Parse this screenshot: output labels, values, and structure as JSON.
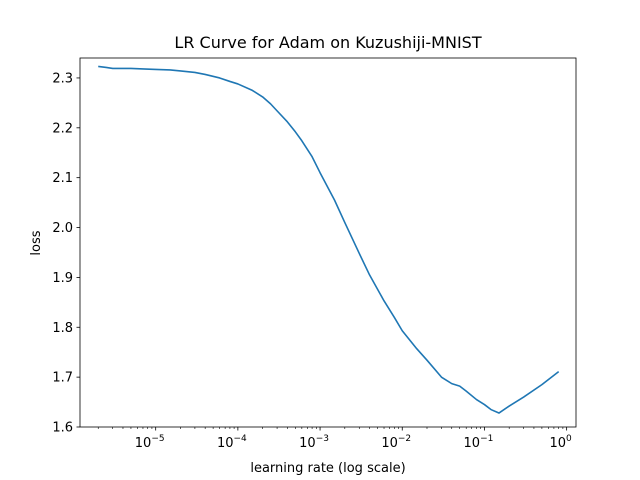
{
  "chart_data": {
    "type": "line",
    "title": "LR Curve for Adam on Kuzushiji-MNIST",
    "xlabel": "learning rate (log scale)",
    "ylabel": "loss",
    "xscale": "log",
    "xlim": [
      1.2e-06,
      1.3
    ],
    "ylim": [
      1.6,
      2.34
    ],
    "grid": false,
    "x_ticks": [
      {
        "value": 1e-05,
        "base": "10",
        "exp": "−5"
      },
      {
        "value": 0.0001,
        "base": "10",
        "exp": "−4"
      },
      {
        "value": 0.001,
        "base": "10",
        "exp": "−3"
      },
      {
        "value": 0.01,
        "base": "10",
        "exp": "−2"
      },
      {
        "value": 0.1,
        "base": "10",
        "exp": "−1"
      },
      {
        "value": 1,
        "base": "10",
        "exp": "0"
      }
    ],
    "y_ticks": [
      {
        "value": 1.6,
        "label": "1.6"
      },
      {
        "value": 1.7,
        "label": "1.7"
      },
      {
        "value": 1.8,
        "label": "1.8"
      },
      {
        "value": 1.9,
        "label": "1.9"
      },
      {
        "value": 2.0,
        "label": "2.0"
      },
      {
        "value": 2.1,
        "label": "2.1"
      },
      {
        "value": 2.2,
        "label": "2.2"
      },
      {
        "value": 2.3,
        "label": "2.3"
      }
    ],
    "series": [
      {
        "color": "#1f77b4",
        "x": [
          2e-06,
          2.5e-06,
          3e-06,
          4e-06,
          5e-06,
          7e-06,
          1e-05,
          1.5e-05,
          2e-05,
          3e-05,
          4e-05,
          6e-05,
          8e-05,
          0.0001,
          0.00015,
          0.0002,
          0.00025,
          0.0003,
          0.0004,
          0.0005,
          0.0006,
          0.0008,
          0.001,
          0.0015,
          0.002,
          0.003,
          0.004,
          0.006,
          0.008,
          0.01,
          0.015,
          0.02,
          0.03,
          0.04,
          0.05,
          0.06,
          0.08,
          0.1,
          0.12,
          0.15,
          0.2,
          0.3,
          0.5,
          0.8
        ],
        "y": [
          2.323,
          2.321,
          2.319,
          2.319,
          2.319,
          2.318,
          2.317,
          2.316,
          2.314,
          2.311,
          2.307,
          2.3,
          2.293,
          2.288,
          2.275,
          2.262,
          2.248,
          2.234,
          2.212,
          2.192,
          2.174,
          2.142,
          2.11,
          2.055,
          2.01,
          1.948,
          1.905,
          1.853,
          1.82,
          1.793,
          1.757,
          1.734,
          1.7,
          1.687,
          1.682,
          1.672,
          1.655,
          1.645,
          1.635,
          1.628,
          1.642,
          1.66,
          1.685,
          1.711
        ]
      }
    ]
  }
}
